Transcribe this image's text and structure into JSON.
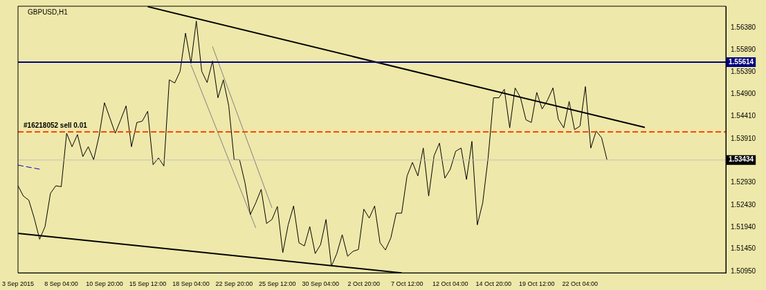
{
  "chart_data": {
    "type": "line",
    "title": "GBPUSD,H1",
    "categories": [
      "3 Sep 2015",
      null,
      null,
      null,
      null,
      null,
      null,
      null,
      "8 Sep 04:00",
      null,
      null,
      null,
      null,
      null,
      null,
      null,
      "10 Sep 20:00",
      null,
      null,
      null,
      null,
      null,
      null,
      null,
      "15 Sep 12:00",
      null,
      null,
      null,
      null,
      null,
      null,
      null,
      "18 Sep 04:00",
      null,
      null,
      null,
      null,
      null,
      null,
      null,
      "22 Sep 20:00",
      null,
      null,
      null,
      null,
      null,
      null,
      null,
      "25 Sep 12:00",
      null,
      null,
      null,
      null,
      null,
      null,
      null,
      "30 Sep 04:00",
      null,
      null,
      null,
      null,
      null,
      null,
      null,
      "2 Oct 20:00",
      null,
      null,
      null,
      null,
      null,
      null,
      null,
      "7 Oct 12:00",
      null,
      null,
      null,
      null,
      null,
      null,
      null,
      "12 Oct 04:00",
      null,
      null,
      null,
      null,
      null,
      null,
      null,
      "14 Oct 20:00",
      null,
      null,
      null,
      null,
      null,
      null,
      null,
      "19 Oct 12:00",
      null,
      null,
      null,
      null,
      null,
      null,
      null,
      "22 Oct 04:00",
      null,
      null,
      null,
      null,
      null,
      null,
      null,
      null,
      null,
      null,
      null,
      null,
      null,
      null,
      null,
      null,
      null,
      null,
      null,
      null,
      null,
      null,
      null,
      null,
      null,
      null,
      null
    ],
    "ylim": [
      1.5092,
      1.5686
    ],
    "yticks": [
      {
        "value": 1.5638,
        "label": "1.56380"
      },
      {
        "value": 1.5589,
        "label": "1.55890"
      },
      {
        "value": 1.5539,
        "label": "1.55390"
      },
      {
        "value": 1.549,
        "label": "1.54900"
      },
      {
        "value": 1.5441,
        "label": "1.54410"
      },
      {
        "value": 1.5391,
        "label": "1.53910"
      },
      {
        "value": 1.5293,
        "label": "1.52930"
      },
      {
        "value": 1.5243,
        "label": "1.52430"
      },
      {
        "value": 1.5194,
        "label": "1.51940"
      },
      {
        "value": 1.5145,
        "label": "1.51450"
      },
      {
        "value": 1.5095,
        "label": "1.50950"
      }
    ],
    "grid": false,
    "legend": false,
    "marker": "none",
    "series": [
      {
        "color": "#000000",
        "values": [
          1.5286,
          1.5263,
          1.5254,
          1.5214,
          1.5167,
          1.5195,
          1.5269,
          1.5286,
          1.5284,
          1.5403,
          1.5373,
          1.54,
          1.5351,
          1.5373,
          1.5344,
          1.5397,
          1.5471,
          1.5437,
          1.5403,
          1.5433,
          1.5464,
          1.5373,
          1.5427,
          1.543,
          1.5452,
          1.5333,
          1.5348,
          1.533,
          1.5522,
          1.5515,
          1.5541,
          1.5626,
          1.5559,
          1.5653,
          1.5541,
          1.5516,
          1.5564,
          1.5482,
          1.5522,
          1.5464,
          1.5344,
          1.5344,
          1.5293,
          1.5222,
          1.5248,
          1.5278,
          1.5202,
          1.5211,
          1.524,
          1.5137,
          1.5199,
          1.5241,
          1.5159,
          1.5152,
          1.5195,
          1.5135,
          1.5155,
          1.5211,
          1.5107,
          1.5135,
          1.5177,
          1.5129,
          1.514,
          1.5144,
          1.5234,
          1.5214,
          1.5241,
          1.5159,
          1.5143,
          1.517,
          1.5225,
          1.5225,
          1.5308,
          1.5338,
          1.5308,
          1.537,
          1.5263,
          1.5353,
          1.5381,
          1.5303,
          1.5323,
          1.5363,
          1.537,
          1.53,
          1.5385,
          1.5199,
          1.5248,
          1.5348,
          1.5482,
          1.5482,
          1.5501,
          1.5415,
          1.5504,
          1.5482,
          1.5433,
          1.5427,
          1.5494,
          1.5457,
          1.5477,
          1.5504,
          1.5434,
          1.5415,
          1.5474,
          1.5411,
          1.5419,
          1.5507,
          1.537,
          1.5408,
          1.5393,
          1.5344,
          null,
          null,
          null,
          null,
          null,
          null,
          null,
          null,
          null,
          null,
          null,
          null,
          null,
          null,
          null,
          null,
          null,
          null,
          null,
          null,
          null,
          null
        ]
      },
      {
        "type": "line",
        "color": "#000000",
        "values": [
          null,
          null,
          null,
          null,
          null,
          null,
          null,
          null,
          null,
          null,
          null,
          null,
          null,
          null,
          null,
          null,
          null,
          null,
          null,
          null,
          null,
          null,
          null,
          null,
          1.5685,
          null,
          null,
          null,
          null,
          null,
          null,
          null,
          null,
          null,
          null,
          null,
          null,
          null,
          null,
          null,
          null,
          null,
          null,
          null,
          null,
          null,
          null,
          null,
          null,
          null,
          null,
          null,
          null,
          null,
          null,
          null,
          null,
          null,
          null,
          null,
          null,
          null,
          null,
          null,
          null,
          null,
          null,
          null,
          null,
          null,
          null,
          null,
          null,
          null,
          null,
          null,
          null,
          null,
          null,
          null,
          null,
          null,
          null,
          null,
          null,
          null,
          null,
          null,
          null,
          null,
          null,
          null,
          null,
          null,
          null,
          null,
          null,
          null,
          null,
          null,
          null,
          null,
          null,
          null,
          null,
          null,
          null,
          null,
          null,
          null,
          null,
          null,
          null,
          null,
          null,
          null,
          1.5416,
          null,
          null,
          null,
          null,
          null,
          null,
          null,
          null,
          null,
          null,
          null,
          null,
          null,
          null,
          null
        ]
      },
      {
        "type": "line",
        "color": "#000000",
        "values": [
          1.518,
          null,
          null,
          null,
          null,
          null,
          null,
          null,
          null,
          null,
          null,
          null,
          null,
          null,
          null,
          null,
          null,
          null,
          null,
          null,
          null,
          null,
          null,
          null,
          null,
          null,
          null,
          null,
          null,
          null,
          null,
          null,
          null,
          null,
          null,
          null,
          null,
          null,
          null,
          null,
          null,
          null,
          null,
          null,
          null,
          null,
          null,
          null,
          null,
          null,
          null,
          null,
          null,
          null,
          null,
          null,
          null,
          null,
          null,
          null,
          null,
          null,
          null,
          null,
          null,
          null,
          null,
          null,
          null,
          null,
          null,
          1.5092,
          null,
          null,
          null,
          null,
          null,
          null,
          null,
          null,
          null,
          null,
          null,
          null,
          null,
          null,
          null,
          null,
          null,
          null,
          null,
          null,
          null,
          null,
          null,
          null,
          null,
          null,
          null,
          null,
          null,
          null,
          null,
          null,
          null,
          null,
          null,
          null,
          null,
          null,
          null,
          null,
          null,
          null,
          null,
          null,
          null,
          null,
          null,
          null,
          null,
          null,
          null,
          null,
          null,
          null,
          null,
          null,
          null,
          null,
          null,
          null
        ]
      },
      {
        "type": "line",
        "color": "#808080",
        "values": [
          null,
          null,
          null,
          null,
          null,
          null,
          null,
          null,
          null,
          null,
          null,
          null,
          null,
          null,
          null,
          null,
          null,
          null,
          null,
          null,
          null,
          null,
          null,
          null,
          null,
          null,
          null,
          null,
          null,
          null,
          null,
          null,
          1.5556,
          null,
          null,
          null,
          null,
          null,
          null,
          null,
          null,
          null,
          null,
          null,
          1.5192,
          null,
          null,
          null,
          null,
          null,
          null,
          null,
          null,
          null,
          null,
          null,
          null,
          null,
          null,
          null,
          null,
          null,
          null,
          null,
          null,
          null,
          null,
          null,
          null,
          null,
          null,
          null,
          null,
          null,
          null,
          null,
          null,
          null,
          null,
          null,
          null,
          null,
          null,
          null,
          null,
          null,
          null,
          null,
          null,
          null,
          null,
          null,
          null,
          null,
          null,
          null,
          null,
          null,
          null,
          null,
          null,
          null,
          null,
          null,
          null,
          null,
          null,
          null,
          null,
          null,
          null,
          null,
          null,
          null,
          null,
          null,
          null,
          null,
          null,
          null,
          null,
          null,
          null,
          null,
          null,
          null,
          null,
          null,
          null,
          null,
          null,
          null
        ]
      },
      {
        "type": "line",
        "color": "#808080",
        "values": [
          null,
          null,
          null,
          null,
          null,
          null,
          null,
          null,
          null,
          null,
          null,
          null,
          null,
          null,
          null,
          null,
          null,
          null,
          null,
          null,
          null,
          null,
          null,
          null,
          null,
          null,
          null,
          null,
          null,
          null,
          null,
          null,
          null,
          null,
          null,
          null,
          1.5596,
          null,
          null,
          null,
          null,
          null,
          null,
          null,
          null,
          null,
          null,
          1.5237,
          null,
          null,
          null,
          null,
          null,
          null,
          null,
          null,
          null,
          null,
          null,
          null,
          null,
          null,
          null,
          null,
          null,
          null,
          null,
          null,
          null,
          null,
          null,
          null,
          null,
          null,
          null,
          null,
          null,
          null,
          null,
          null,
          null,
          null,
          null,
          null,
          null,
          null,
          null,
          null,
          null,
          null,
          null,
          null,
          null,
          null,
          null,
          null,
          null,
          null,
          null,
          null,
          null,
          null,
          null,
          null,
          null,
          null,
          null,
          null,
          null,
          null,
          null,
          null,
          null,
          null,
          null,
          null,
          null,
          null,
          null,
          null,
          null,
          null,
          null,
          null,
          null,
          null,
          null,
          null,
          null,
          null,
          null,
          null
        ]
      },
      {
        "type": "line",
        "color": "#0000cd",
        "line_style": "dashed",
        "values": [
          1.5332,
          null,
          null,
          null,
          1.5323,
          null,
          null,
          null,
          null,
          null,
          null,
          null,
          null,
          null,
          null,
          null,
          null,
          null,
          null,
          null,
          null,
          null,
          null,
          null,
          null,
          null,
          null,
          null,
          null,
          null,
          null,
          null,
          null,
          null,
          null,
          null,
          null,
          null,
          null,
          null,
          null,
          null,
          null,
          null,
          null,
          null,
          null,
          null,
          null,
          null,
          null,
          null,
          null,
          null,
          null,
          null,
          null,
          null,
          null,
          null,
          null,
          null,
          null,
          null,
          null,
          null,
          null,
          null,
          null,
          null,
          null,
          null,
          null,
          null,
          null,
          null,
          null,
          null,
          null,
          null,
          null,
          null,
          null,
          null,
          null,
          null,
          null,
          null,
          null,
          null,
          null,
          null,
          null,
          null,
          null,
          null,
          null,
          null,
          null,
          null,
          null,
          null,
          null,
          null,
          null,
          null,
          null,
          null,
          null,
          null,
          null,
          null,
          null,
          null,
          null,
          null,
          null,
          null,
          null,
          null,
          null,
          null,
          null,
          null,
          null,
          null,
          null,
          null,
          null,
          null,
          null,
          null
        ]
      }
    ],
    "ref_lines": [
      {
        "axis": "y",
        "value": 1.55614,
        "label": "1.55614",
        "color": "#000080"
      },
      {
        "axis": "y",
        "value": 1.53434,
        "label": "1.53434",
        "color": "#c0c0c0"
      },
      {
        "axis": "y",
        "value": 1.5406,
        "label": "#16218052 sell 0.01",
        "color": "#ff4500",
        "line_style": "dashed"
      }
    ]
  }
}
